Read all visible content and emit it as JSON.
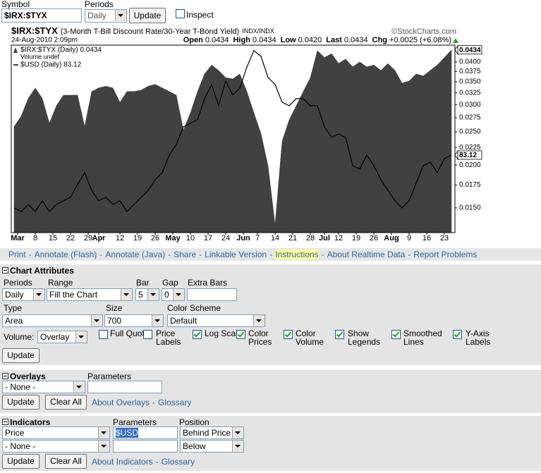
{
  "toolbar": {
    "symbol_label": "Symbol",
    "symbol": "$IRX:$TYX",
    "periods_label": "Periods",
    "periods": "Daily",
    "update": "Update",
    "inspect": "Inspect",
    "inspect_checked": false
  },
  "chart_header": {
    "title": "$IRX:$TYX",
    "subtitle": "(3-Month T-Bill Discount Rate/30-Year T-Bond Yield)",
    "exchange": "INDX/INDX",
    "credit": "©StockCharts.com",
    "date": "24-Aug-2010 2:09pm",
    "stats": [
      {
        "label": "Open",
        "value": "0.0434"
      },
      {
        "label": "High",
        "value": "0.0434"
      },
      {
        "label": "Low",
        "value": "0.0420"
      },
      {
        "label": "Last",
        "value": "0.0434"
      },
      {
        "label": "Chg",
        "value": "+0.0025 (+6.08%)"
      }
    ]
  },
  "chart_data": {
    "type": "area",
    "ylog": true,
    "grid": false,
    "x": [
      0,
      2,
      4,
      6,
      8,
      10,
      12,
      14,
      16,
      18,
      20,
      22,
      24,
      26,
      28,
      30,
      32,
      34,
      36,
      38,
      40,
      42,
      44,
      46,
      48,
      50,
      52,
      54,
      56,
      58,
      60,
      62,
      64,
      66,
      68,
      70,
      72,
      74,
      76,
      78,
      80,
      82,
      84,
      86,
      88,
      90,
      92,
      94,
      96,
      98,
      100,
      102,
      104,
      106,
      108,
      110,
      112,
      114,
      116,
      118,
      120,
      122,
      124
    ],
    "xlim": [
      -0.8,
      125
    ],
    "xticks": [
      {
        "value": 1,
        "label": "Mar"
      },
      {
        "value": 6,
        "label": "8"
      },
      {
        "value": 11,
        "label": "15"
      },
      {
        "value": 16,
        "label": "22"
      },
      {
        "value": 21,
        "label": "29"
      },
      {
        "value": 24,
        "label": "Apr"
      },
      {
        "value": 30,
        "label": "12"
      },
      {
        "value": 35,
        "label": "19"
      },
      {
        "value": 40,
        "label": "26"
      },
      {
        "value": 45,
        "label": "May"
      },
      {
        "value": 50,
        "label": "10"
      },
      {
        "value": 55,
        "label": "17"
      },
      {
        "value": 60,
        "label": "24"
      },
      {
        "value": 65,
        "label": "Jun"
      },
      {
        "value": 69,
        "label": "7"
      },
      {
        "value": 74,
        "label": "14"
      },
      {
        "value": 79,
        "label": "21"
      },
      {
        "value": 84,
        "label": "28"
      },
      {
        "value": 88,
        "label": "Jul"
      },
      {
        "value": 92,
        "label": "12"
      },
      {
        "value": 97,
        "label": "19"
      },
      {
        "value": 102,
        "label": "26"
      },
      {
        "value": 107,
        "label": "Aug"
      },
      {
        "value": 112,
        "label": "9"
      },
      {
        "value": 117,
        "label": "16"
      },
      {
        "value": 122,
        "label": "23"
      }
    ],
    "ylim": [
      0.0127,
      0.0448
    ],
    "yticks": [
      {
        "value": 0.04,
        "label": "0.0400"
      },
      {
        "value": 0.0375,
        "label": "0.0375"
      },
      {
        "value": 0.035,
        "label": "0.0350"
      },
      {
        "value": 0.0325,
        "label": "0.0325"
      },
      {
        "value": 0.03,
        "label": "0.0300"
      },
      {
        "value": 0.0275,
        "label": "0.0275"
      },
      {
        "value": 0.025,
        "label": "0.0250"
      },
      {
        "value": 0.0225,
        "label": "0.0225"
      },
      {
        "value": 0.02,
        "label": "0.0200"
      },
      {
        "value": 0.0175,
        "label": "0.0175"
      },
      {
        "value": 0.015,
        "label": "0.0150"
      }
    ],
    "y2lim": [
      79.19,
      88.69
    ],
    "volume_legend": "Volume undef",
    "series": [
      {
        "name": "$IRX:$TYX (Daily) 0.0434",
        "color": "#414141",
        "values": [
          0.0259,
          0.0278,
          0.0313,
          0.0336,
          0.0313,
          0.0265,
          0.0298,
          0.032,
          0.032,
          0.032,
          0.0259,
          0.0328,
          0.0336,
          0.034,
          0.0336,
          0.0305,
          0.0328,
          0.0328,
          0.0331,
          0.034,
          0.0344,
          0.0336,
          0.0328,
          0.032,
          0.0253,
          0.0284,
          0.0328,
          0.0369,
          0.0392,
          0.0378,
          0.036,
          0.0357,
          0.0369,
          0.0328,
          0.0284,
          0.0247,
          0.0199,
          0.0134,
          0.0235,
          0.0271,
          0.0298,
          0.0328,
          0.036,
          0.0432,
          0.0412,
          0.0423,
          0.0396,
          0.0408,
          0.0387,
          0.04,
          0.0387,
          0.0392,
          0.0378,
          0.0396,
          0.0378,
          0.0347,
          0.0352,
          0.0369,
          0.0364,
          0.0378,
          0.0392,
          0.0412,
          0.0434
        ]
      },
      {
        "name": "$USD (Daily) 83.12",
        "color": "#000000",
        "type": "line",
        "axis": "y2",
        "values": [
          80.44,
          80.26,
          80.62,
          80.26,
          80.8,
          80.26,
          80.62,
          80.8,
          80.98,
          81.62,
          82.23,
          81.33,
          80.8,
          80.98,
          80.62,
          80.8,
          80.26,
          80.62,
          80.98,
          81.33,
          81.87,
          82.23,
          83.12,
          83.66,
          84.55,
          84.73,
          84.91,
          85.98,
          86.69,
          85.62,
          86.87,
          86.16,
          86.51,
          87.58,
          88.41,
          88.12,
          87.05,
          86.69,
          85.8,
          85.62,
          85.98,
          85.98,
          85.62,
          85.62,
          84.55,
          84.01,
          84.19,
          84.01,
          82.58,
          82.41,
          83.12,
          82.58,
          81.87,
          81.33,
          80.8,
          80.44,
          80.8,
          81.69,
          82.58,
          82.76,
          82.23,
          82.94,
          83.12
        ]
      }
    ]
  },
  "links": {
    "items": [
      "Print",
      "Annotate (Flash)",
      "Annotate (Java)",
      "Share",
      "Linkable Version",
      "Instructions",
      "About Realtime Data",
      "Report Problems"
    ],
    "separator": "-",
    "highlighted": 5
  },
  "chart_attributes": {
    "title": "Chart Attributes",
    "periods_label": "Periods",
    "periods": "Daily",
    "range_label": "Range",
    "range": "Fill the Chart",
    "bar_label": "Bar",
    "bar": "5",
    "gap_label": "Gap",
    "gap": "0",
    "extra_bars_label": "Extra Bars",
    "type_label": "Type",
    "type": "Area",
    "size_label": "Size",
    "size": "700",
    "color_scheme_label": "Color Scheme",
    "color_scheme": "Default",
    "volume_label": "Volume:",
    "volume": "Overlay",
    "options": [
      {
        "label": "Full Quote",
        "checked": false
      },
      {
        "label": "Price Labels",
        "checked": false
      },
      {
        "label": "Log Scale",
        "checked": true
      },
      {
        "label": "Color Prices",
        "checked": true
      },
      {
        "label": "Color Volume",
        "checked": true
      },
      {
        "label": "Show Legends",
        "checked": true
      },
      {
        "label": "Smoothed Lines",
        "checked": true
      },
      {
        "label": "Y-Axis Labels",
        "checked": true
      }
    ],
    "update": "Update"
  },
  "overlays": {
    "title": "Overlays",
    "parameters_label": "Parameters",
    "selection": "- None -",
    "update": "Update",
    "clear": "Clear All",
    "about": "About Overlays",
    "separator": "-",
    "glossary": "Glossary"
  },
  "indicators": {
    "title": "Indicators",
    "parameters_label": "Parameters",
    "position_label": "Position",
    "rows": [
      {
        "indicator": "Price",
        "parameters": "$USD",
        "position": "Behind Price"
      },
      {
        "indicator": "- None -",
        "position": "Below"
      }
    ],
    "update": "Update",
    "clear": "Clear All",
    "about": "About Indicators",
    "separator": "-",
    "glossary": "Glossary"
  }
}
